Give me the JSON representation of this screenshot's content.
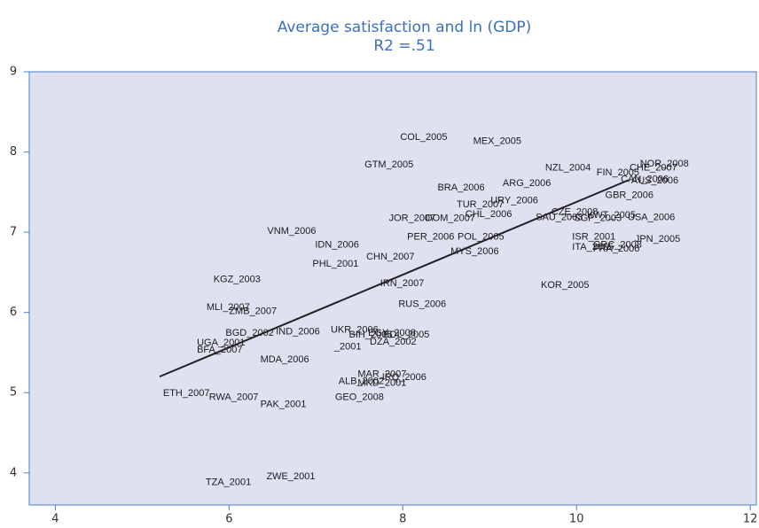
{
  "chart_data": {
    "type": "scatter",
    "title": "Average satisfaction and ln (GDP)",
    "subtitle": "R2 =.51",
    "xlim": [
      3.7,
      12.07
    ],
    "xticks": [
      4,
      6,
      8,
      10,
      12
    ],
    "ylim": [
      3.6,
      9
    ],
    "yticks": [
      4,
      5,
      6,
      7,
      8,
      9
    ],
    "color": "#1a1a1a",
    "background": "#dfe1f1",
    "axis_color": "#4a7fc8",
    "title_color": "#3a70c0",
    "points": {
      "labels": [
        "COL_2005",
        "MEX_2005",
        "GTM_2005",
        "NZL_2004",
        "FIN_2005",
        "CHE_2007",
        "NOR_2008",
        "CAN_2006",
        "AUS_2006",
        "ARG_2006",
        "BRA_2006",
        "GBR_2006",
        "URY_2006",
        "TUR_2007",
        "CZE_2008",
        "SAU_2003",
        "KWT_2005",
        "SGP_2003",
        "USA_2006",
        "JOR_2007",
        "DOM_2007",
        "CHL_2006",
        "VNM_2006",
        "PER_2006",
        "POL_2005",
        "ISR_2001",
        "JPN_2005",
        "IDN_2006",
        "ITA_2005",
        "GRC_2008",
        "FRA_2006",
        "MYS_2006",
        "CHN_2007",
        "PHL_2001",
        "KGZ_2003",
        "IRN_2007",
        "KOR_2005",
        "RUS_2006",
        "MLI_2007",
        "ZMB_2007",
        "BGD_2002",
        "IND_2006",
        "UKR_2006",
        "BIH_2005",
        "EGY_2008",
        "BOL_2005",
        "DZA_2002",
        "_2001",
        "UGA_2001",
        "BFA_2007",
        "MDA_2006",
        "MAR_2007",
        "ALB_2002",
        "MKD_2001",
        "IRQ_2006",
        "ETH_2007",
        "RWA_2007",
        "GEO_2008",
        "PAK_2001",
        "TZA_2001",
        "ZWE_2001"
      ],
      "x": [
        7.97,
        8.81,
        7.56,
        9.64,
        10.23,
        10.61,
        10.73,
        10.51,
        10.63,
        9.15,
        8.4,
        10.33,
        9.01,
        8.62,
        9.71,
        9.53,
        10.12,
        9.97,
        10.59,
        7.84,
        8.26,
        8.72,
        6.44,
        8.05,
        8.63,
        9.95,
        10.67,
        6.99,
        9.95,
        10.19,
        10.19,
        8.55,
        7.58,
        6.96,
        5.82,
        7.74,
        9.59,
        7.95,
        5.74,
        6.0,
        5.96,
        6.54,
        7.17,
        7.38,
        7.6,
        7.77,
        7.62,
        7.21,
        5.63,
        5.63,
        6.36,
        7.48,
        7.26,
        7.48,
        7.76,
        5.24,
        5.77,
        7.22,
        6.36,
        5.73,
        6.43
      ],
      "y": [
        8.18,
        8.13,
        7.84,
        7.8,
        7.74,
        7.8,
        7.85,
        7.66,
        7.64,
        7.61,
        7.55,
        7.46,
        7.39,
        7.34,
        7.25,
        7.18,
        7.21,
        7.17,
        7.18,
        7.17,
        7.17,
        7.22,
        7.01,
        6.94,
        6.94,
        6.94,
        6.91,
        6.84,
        6.81,
        6.84,
        6.79,
        6.76,
        6.69,
        6.6,
        6.41,
        6.36,
        6.34,
        6.1,
        6.06,
        6.01,
        5.74,
        5.76,
        5.78,
        5.72,
        5.74,
        5.72,
        5.63,
        5.57,
        5.62,
        5.53,
        5.41,
        5.23,
        5.14,
        5.12,
        5.19,
        4.99,
        4.94,
        4.94,
        4.85,
        3.88,
        3.95
      ]
    },
    "fit": {
      "x": [
        5.2,
        10.6
      ],
      "y": [
        5.2,
        7.65
      ]
    }
  }
}
